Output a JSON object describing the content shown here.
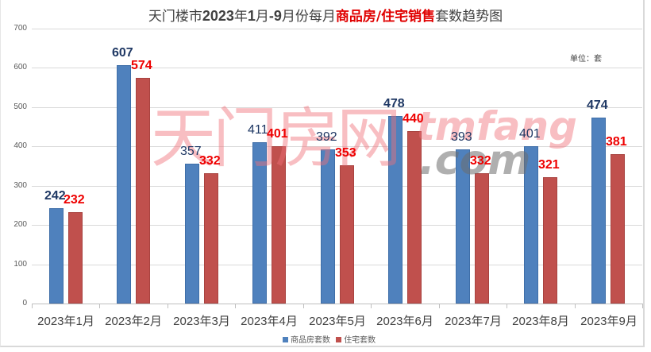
{
  "title": {
    "part1": "天门楼市",
    "part2": "2023",
    "part3": "年",
    "part4": "1",
    "part5": "月",
    "part6": "-9",
    "part7": "月份每月",
    "part8_red": "商品房/住宅销售",
    "part9": "套数趋势图"
  },
  "unit_label": "单位：套",
  "watermark": {
    "cn": "天门房网",
    "en": "tmfang",
    "com": ".com"
  },
  "legend": [
    {
      "label": "商品房套数",
      "color": "#4f81bd"
    },
    {
      "label": "住宅套数",
      "color": "#c0504d"
    }
  ],
  "y_ticks": [
    "0",
    "100",
    "200",
    "300",
    "400",
    "500",
    "600",
    "700"
  ],
  "chart_data": {
    "type": "bar",
    "title": "天门楼市2023年1月-9月份每月商品房/住宅销售套数趋势图",
    "xlabel": "",
    "ylabel": "",
    "unit": "单位：套",
    "ylim": [
      0,
      700
    ],
    "y_tick_step": 100,
    "grid": true,
    "legend_position": "bottom",
    "categories": [
      "2023年1月",
      "2023年2月",
      "2023年3月",
      "2023年4月",
      "2023年5月",
      "2023年6月",
      "2023年7月",
      "2023年8月",
      "2023年9月"
    ],
    "series": [
      {
        "name": "商品房套数",
        "color": "#4f81bd",
        "values": [
          242,
          607,
          357,
          411,
          392,
          478,
          393,
          401,
          474
        ]
      },
      {
        "name": "住宅套数",
        "color": "#c0504d",
        "values": [
          232,
          574,
          332,
          401,
          353,
          440,
          332,
          321,
          381
        ]
      }
    ]
  }
}
